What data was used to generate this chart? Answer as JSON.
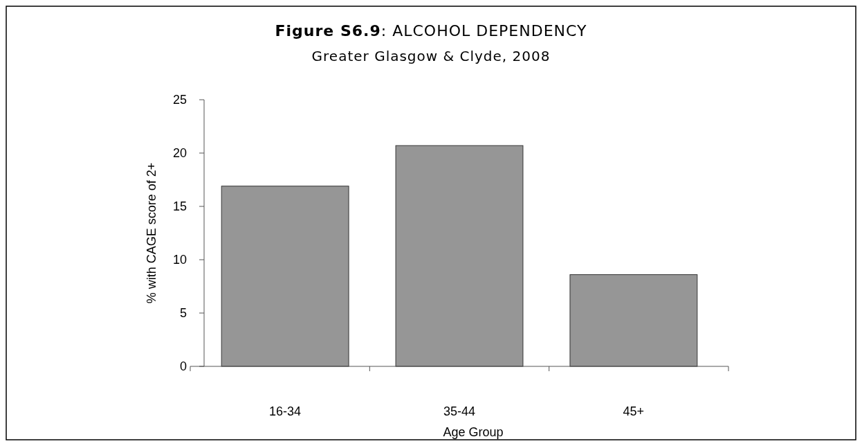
{
  "chart_data": {
    "type": "bar",
    "title": "Figure S6.9: ALCOHOL DEPENDENCY",
    "subtitle": "Greater Glasgow & Clyde, 2008",
    "xlabel": "Age Group",
    "ylabel": "% with CAGE score of 2+",
    "categories": [
      "16-34",
      "35-44",
      "45+"
    ],
    "values": [
      16.9,
      20.7,
      8.6
    ],
    "color": "#969696",
    "ylim": [
      0,
      25
    ],
    "yticks": [
      0,
      5,
      10,
      15,
      20,
      25
    ]
  }
}
